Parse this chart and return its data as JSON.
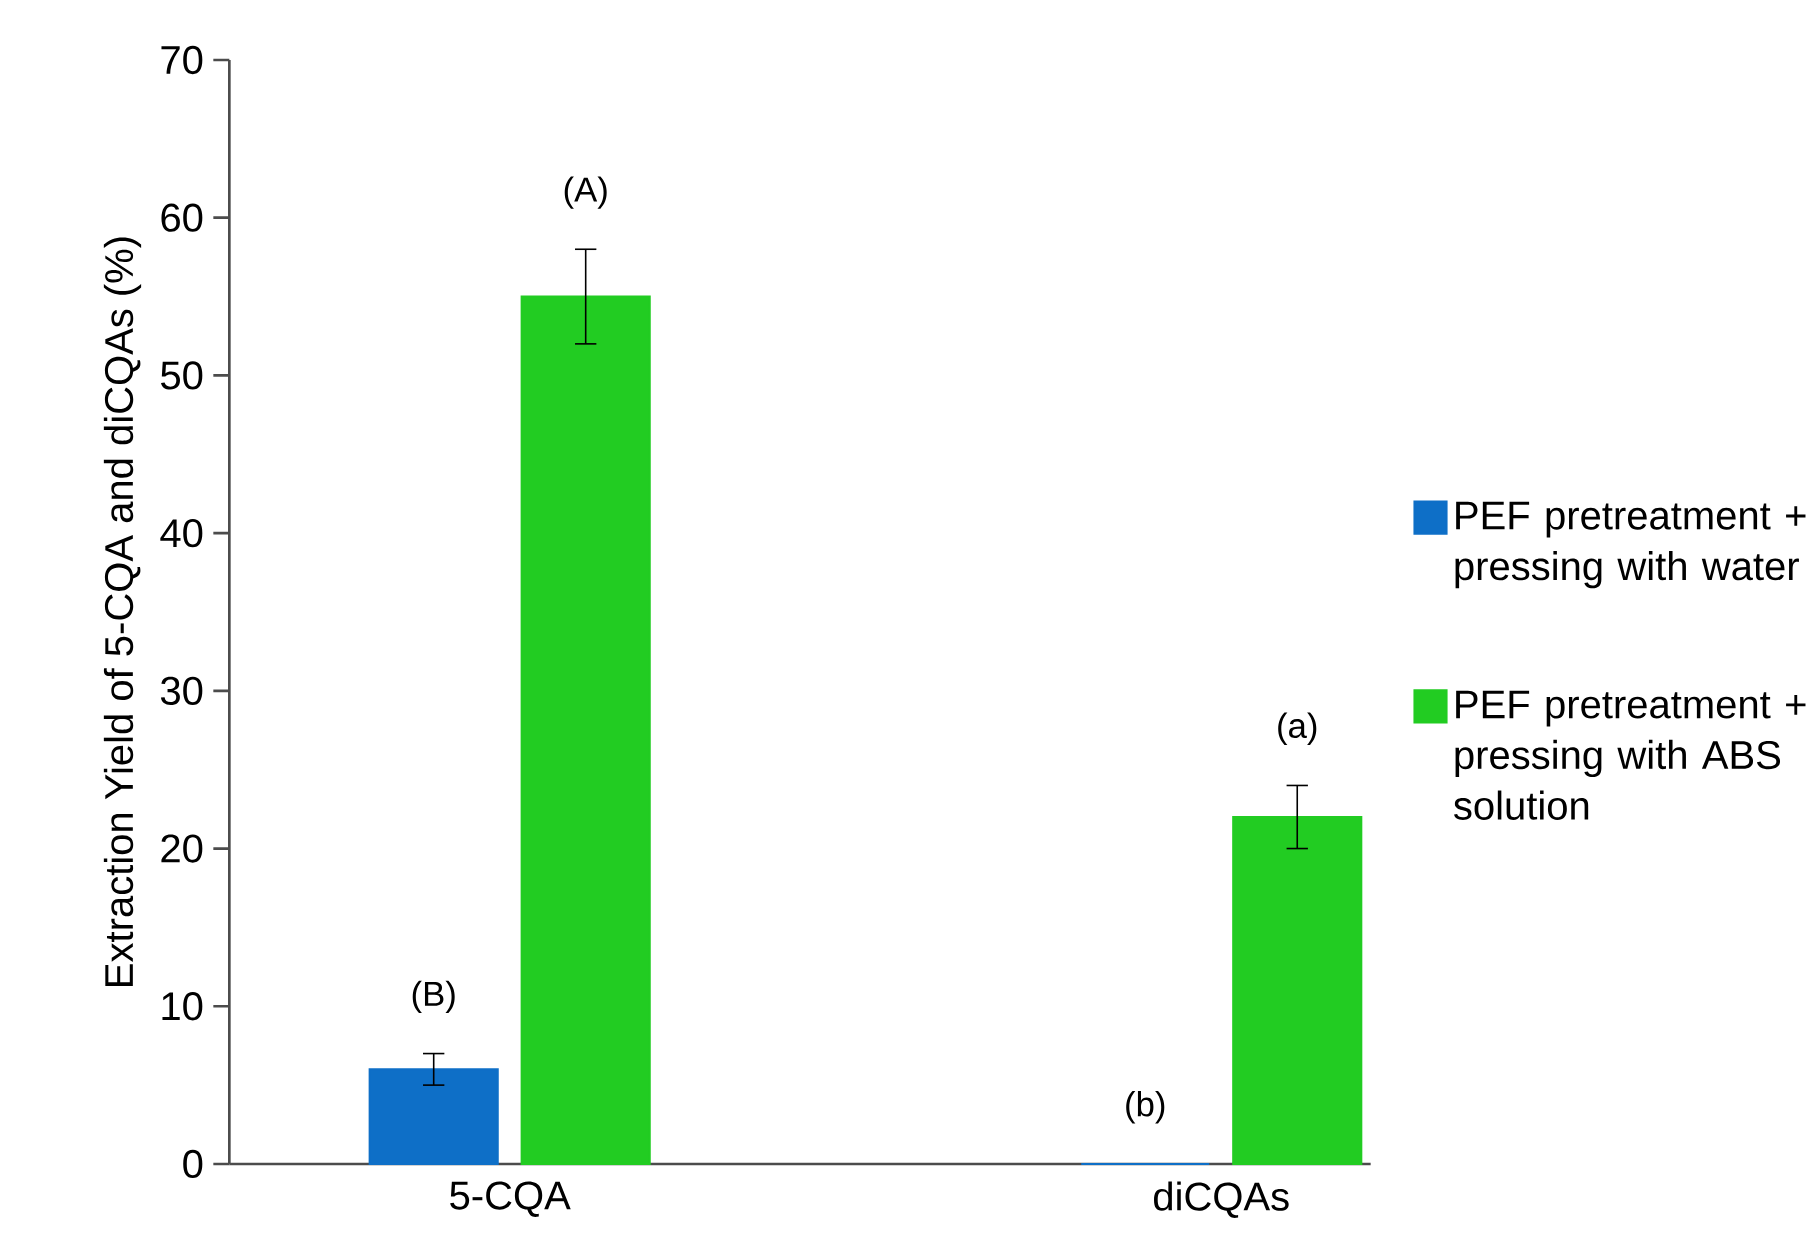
{
  "chart_data": {
    "type": "bar",
    "ylabel": "Extraction Yield of 5-CQA and diCQAs (%)",
    "categories": [
      "5-CQA",
      "diCQAs"
    ],
    "series": [
      {
        "name": "PEF pretreatment + pressing with water",
        "color": "#0e6fc7",
        "values": [
          6,
          0
        ],
        "errors": [
          1,
          null
        ]
      },
      {
        "name": "PEF pretreatment + pressing with ABS solution",
        "color": "#22cc22",
        "values": [
          55,
          22
        ],
        "errors": [
          3,
          2
        ]
      }
    ],
    "ylim": [
      0,
      70
    ],
    "yticks": [
      0,
      10,
      20,
      30,
      40,
      50,
      60,
      70
    ],
    "grid": false,
    "legend": "right",
    "annotations": [
      "(B)",
      "(A)",
      "(b)",
      "(a)"
    ]
  }
}
